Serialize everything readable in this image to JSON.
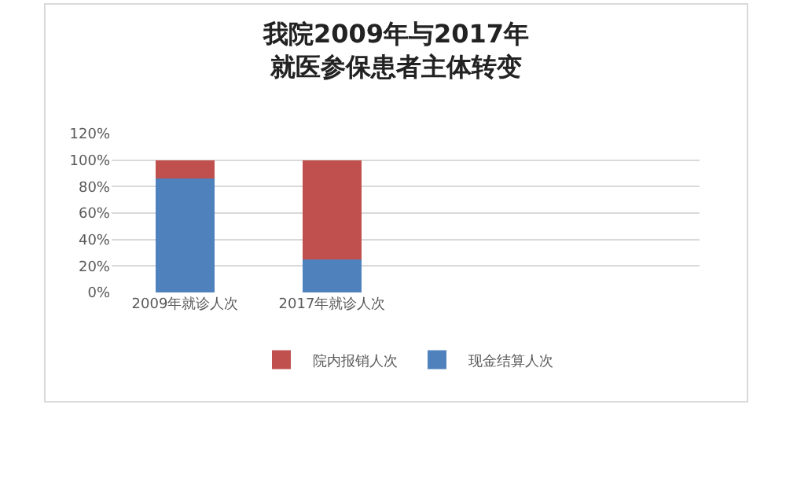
{
  "chart_data": {
    "type": "bar",
    "title": "我院2009年与2017年就医参保患者主体转变",
    "categories": [
      "2009年就诊人次",
      "2017年就诊人次",
      null,
      null
    ],
    "stacked": true,
    "series": [
      {
        "name": "现金结算人次",
        "color": "#4f81bd",
        "values": [
          86,
          25,
          null,
          null
        ]
      },
      {
        "name": "院内报销人次",
        "color": "#c0504d",
        "values": [
          14,
          75,
          null,
          null
        ]
      }
    ],
    "ylim": [
      0,
      120
    ],
    "yticks": [
      {
        "value": 0,
        "label": "0%"
      },
      {
        "value": 20,
        "label": "20%"
      },
      {
        "value": 40,
        "label": "40%"
      },
      {
        "value": 60,
        "label": "60%"
      },
      {
        "value": 80,
        "label": "80%"
      },
      {
        "value": 100,
        "label": "100%"
      },
      {
        "value": 120,
        "label": "120%"
      }
    ],
    "grid": "y",
    "legend": "bottom"
  }
}
